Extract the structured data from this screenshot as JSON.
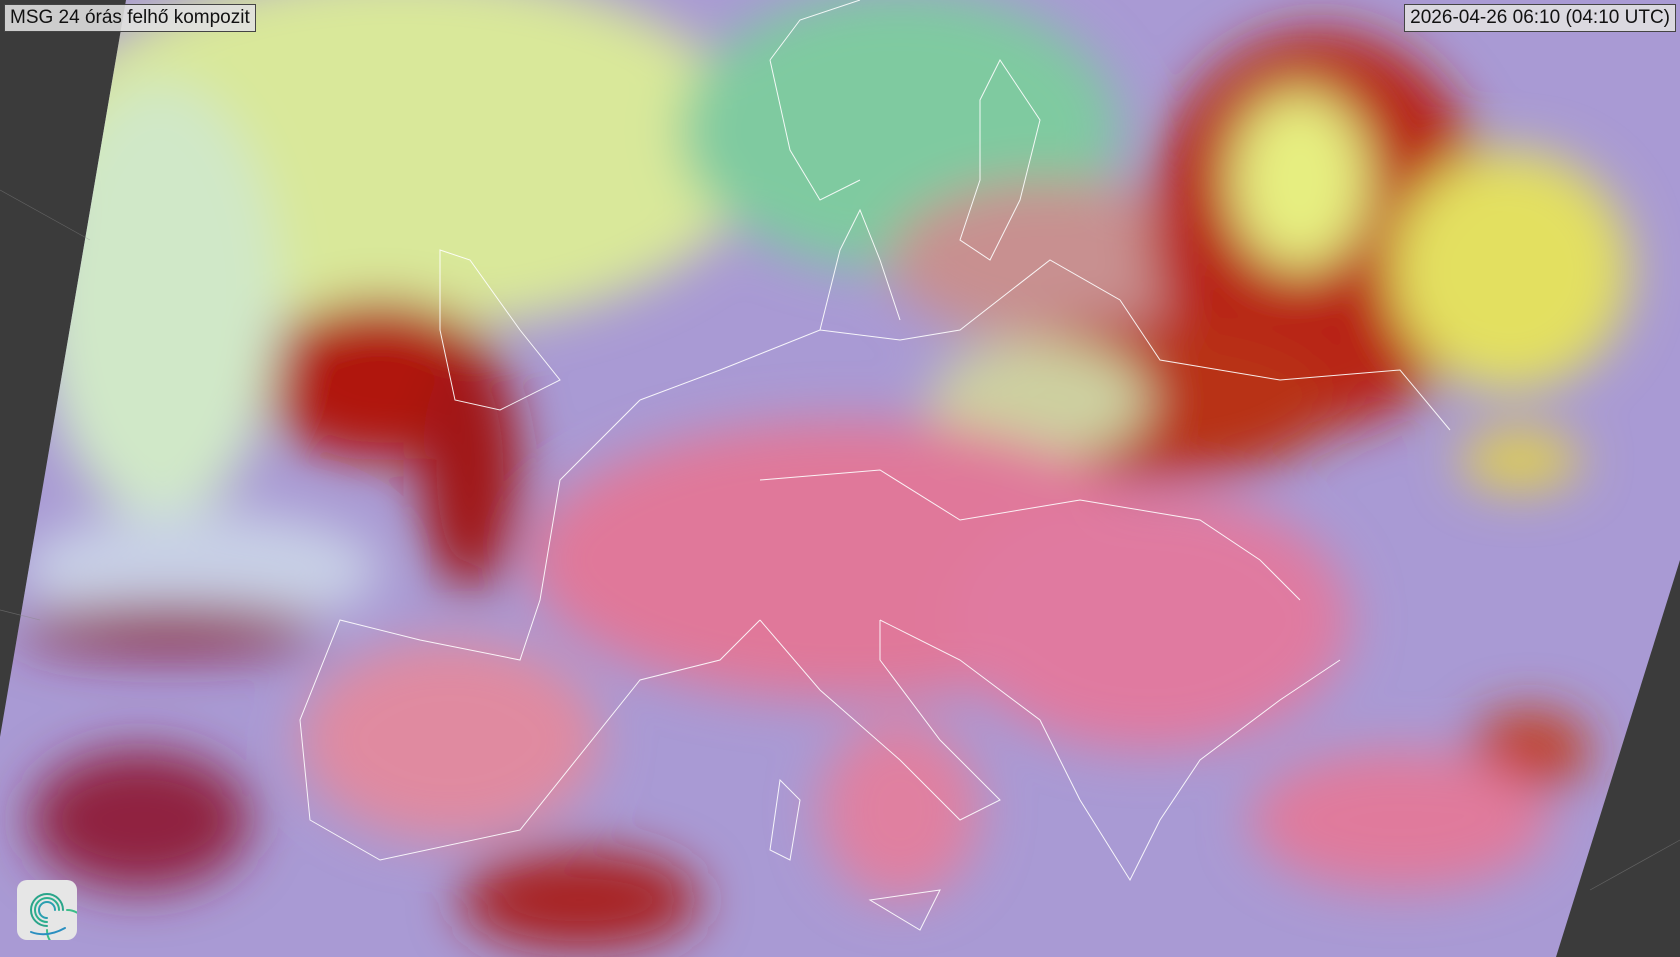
{
  "map": {
    "title": "MSG 24 órás felhő kompozit",
    "timestamp": "2026-04-26 06:10 (04:10 UTC)",
    "logo_icon": "spiral-logo-icon",
    "colors": {
      "background": "#3b3b3b",
      "clear_land": "#e0789a",
      "sea": "#a79ad6",
      "thick_cloud": "#b01810",
      "low_cloud": "#d8e890",
      "borders": "#ffffff"
    }
  }
}
